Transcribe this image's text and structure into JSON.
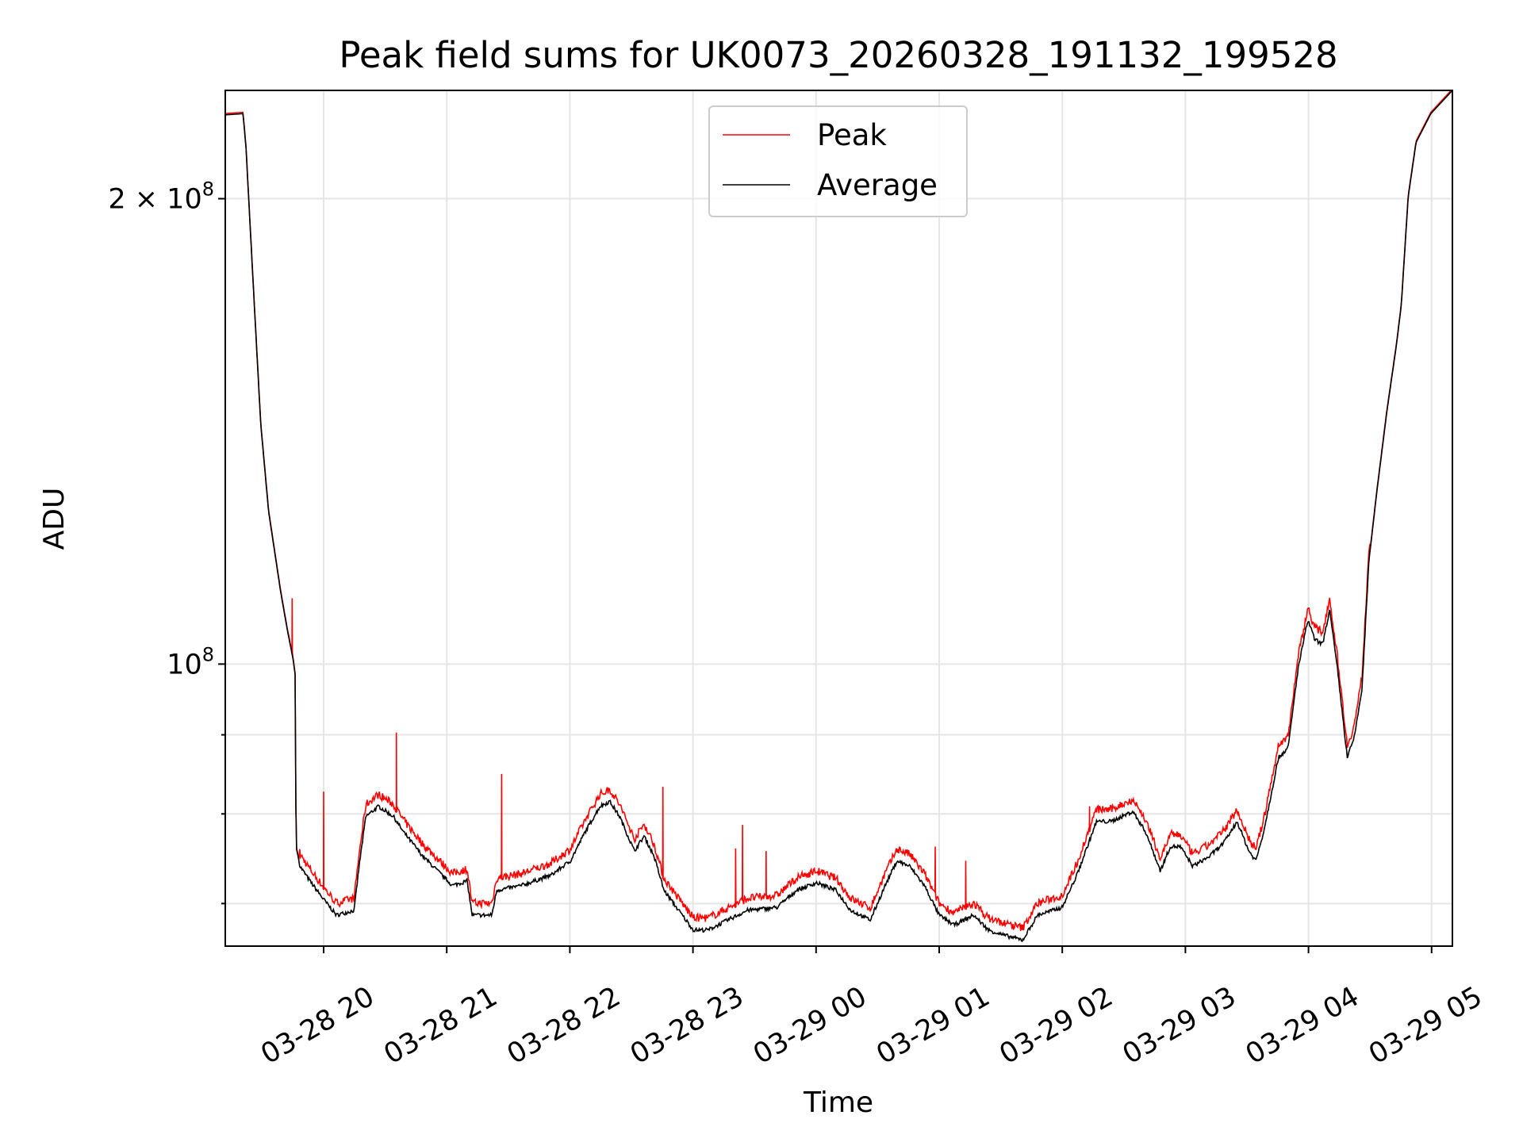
{
  "chart_data": {
    "type": "line",
    "title": "Peak field sums for UK0073_20260328_191132_199528",
    "xlabel": "Time",
    "ylabel": "ADU",
    "yscale": "log",
    "y_unit_multiplier": 1000000,
    "x_unit": "hours after 03-28 00:00",
    "xlim": [
      19.201,
      29.169
    ],
    "ylim": [
      65.7,
      235
    ],
    "grid": true,
    "legend": {
      "placement": "upper-center",
      "entries": [
        "Peak",
        "Average"
      ]
    },
    "x_ticks": [
      {
        "value": 20,
        "label": "03-28 20"
      },
      {
        "value": 21,
        "label": "03-28 21"
      },
      {
        "value": 22,
        "label": "03-28 22"
      },
      {
        "value": 23,
        "label": "03-28 23"
      },
      {
        "value": 24,
        "label": "03-29 00"
      },
      {
        "value": 25,
        "label": "03-29 01"
      },
      {
        "value": 26,
        "label": "03-29 02"
      },
      {
        "value": 27,
        "label": "03-29 03"
      },
      {
        "value": 28,
        "label": "03-29 04"
      },
      {
        "value": 29,
        "label": "03-29 05"
      }
    ],
    "y_major_ticks": [
      {
        "value": 100,
        "label_base": "10",
        "label_mult": "",
        "label_exp": "8"
      },
      {
        "value": 200,
        "label_base": "10",
        "label_mult": "2 × ",
        "label_exp": "8"
      }
    ],
    "y_minor_ticks": [
      70,
      80,
      90
    ],
    "series": [
      {
        "name": "Average",
        "color": "#000000",
        "points": [
          [
            19.201,
            226.6
          ],
          [
            19.345,
            227
          ],
          [
            19.369,
            216
          ],
          [
            19.433,
            173
          ],
          [
            19.489,
            143
          ],
          [
            19.553,
            125.5
          ],
          [
            19.649,
            111.6
          ],
          [
            19.704,
            105.3
          ],
          [
            19.752,
            100.7
          ],
          [
            19.768,
            98.5
          ],
          [
            19.776,
            76.2
          ],
          [
            19.808,
            74.0
          ],
          [
            19.888,
            72.4
          ],
          [
            20.008,
            70.3
          ],
          [
            20.104,
            68.8
          ],
          [
            20.248,
            69.3
          ],
          [
            20.288,
            74.0
          ],
          [
            20.343,
            79.7
          ],
          [
            20.447,
            80.9
          ],
          [
            20.567,
            79.7
          ],
          [
            20.647,
            77.9
          ],
          [
            20.807,
            75.1
          ],
          [
            21.046,
            71.9
          ],
          [
            21.166,
            72.4
          ],
          [
            21.206,
            68.8
          ],
          [
            21.366,
            68.8
          ],
          [
            21.406,
            71.4
          ],
          [
            21.605,
            71.9
          ],
          [
            21.845,
            73.0
          ],
          [
            22.005,
            74.6
          ],
          [
            22.125,
            77.9
          ],
          [
            22.244,
            80.9
          ],
          [
            22.324,
            81.5
          ],
          [
            22.404,
            79.7
          ],
          [
            22.524,
            75.7
          ],
          [
            22.604,
            77.4
          ],
          [
            22.684,
            75.1
          ],
          [
            22.764,
            71.4
          ],
          [
            22.883,
            69.3
          ],
          [
            23.003,
            67.3
          ],
          [
            23.123,
            67.3
          ],
          [
            23.283,
            68.3
          ],
          [
            23.443,
            69.3
          ],
          [
            23.682,
            69.6
          ],
          [
            23.842,
            71.4
          ],
          [
            24.002,
            72.2
          ],
          [
            24.161,
            71.4
          ],
          [
            24.281,
            69.3
          ],
          [
            24.441,
            68.3
          ],
          [
            24.561,
            71.9
          ],
          [
            24.657,
            74.6
          ],
          [
            24.76,
            74.0
          ],
          [
            24.88,
            71.9
          ],
          [
            25.0,
            68.8
          ],
          [
            25.12,
            67.8
          ],
          [
            25.28,
            68.8
          ],
          [
            25.399,
            67.3
          ],
          [
            25.519,
            66.8
          ],
          [
            25.679,
            66.3
          ],
          [
            25.799,
            68.8
          ],
          [
            25.998,
            69.6
          ],
          [
            26.118,
            73.0
          ],
          [
            26.278,
            79.1
          ],
          [
            26.398,
            79.1
          ],
          [
            26.573,
            80.3
          ],
          [
            26.677,
            77.9
          ],
          [
            26.797,
            73.5
          ],
          [
            26.877,
            76.2
          ],
          [
            26.957,
            76.2
          ],
          [
            27.061,
            74.0
          ],
          [
            27.196,
            75.1
          ],
          [
            27.316,
            76.7
          ],
          [
            27.42,
            79.1
          ],
          [
            27.516,
            75.7
          ],
          [
            27.572,
            74.6
          ],
          [
            27.636,
            77.9
          ],
          [
            27.756,
            87.0
          ],
          [
            27.835,
            88.3
          ],
          [
            27.915,
            99.3
          ],
          [
            27.995,
            106.8
          ],
          [
            28.051,
            103.7
          ],
          [
            28.115,
            103.0
          ],
          [
            28.171,
            108.4
          ],
          [
            28.235,
            99.3
          ],
          [
            28.315,
            87.0
          ],
          [
            28.371,
            89.6
          ],
          [
            28.435,
            96.4
          ],
          [
            28.491,
            116.6
          ],
          [
            28.555,
            129.2
          ],
          [
            28.635,
            145.3
          ],
          [
            28.715,
            161.0
          ],
          [
            28.754,
            170.7
          ],
          [
            28.81,
            200.6
          ],
          [
            28.874,
            217.5
          ],
          [
            28.994,
            227
          ],
          [
            29.169,
            235
          ]
        ]
      },
      {
        "name": "Peak",
        "color": "#ff0000",
        "ratio_to_average": 1.012,
        "spikes": [
          [
            19.744,
            110.3
          ],
          [
            20.0,
            82.7
          ],
          [
            20.591,
            90.3
          ],
          [
            21.446,
            84.9
          ],
          [
            22.756,
            83.3
          ],
          [
            23.347,
            76.0
          ],
          [
            23.403,
            78.7
          ],
          [
            23.594,
            75.7
          ],
          [
            24.968,
            76.2
          ],
          [
            25.216,
            74.6
          ],
          [
            26.222,
            80.9
          ]
        ]
      }
    ]
  }
}
